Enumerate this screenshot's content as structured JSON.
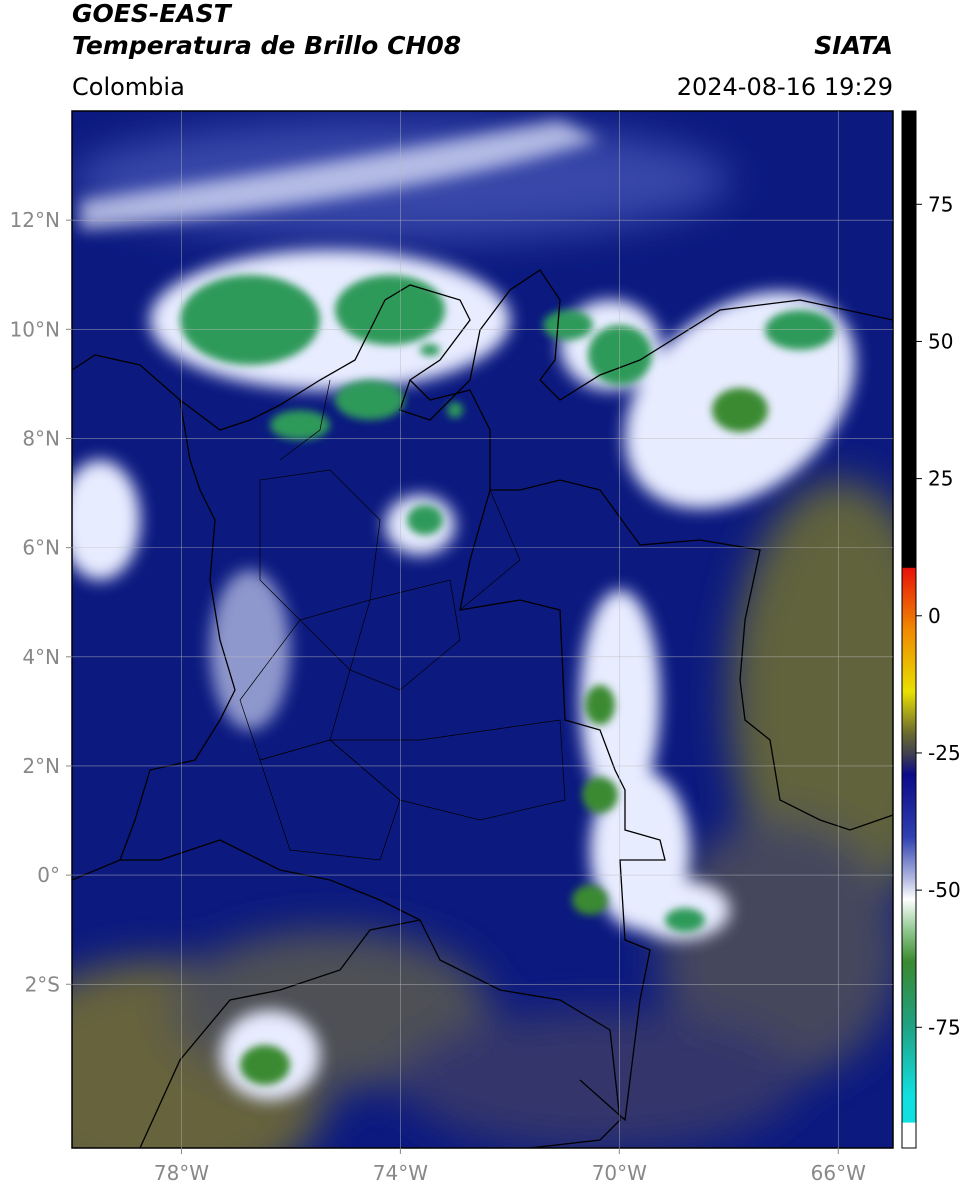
{
  "chart_data": {
    "type": "map",
    "title": "GOES-EAST",
    "subtitle": "Temperatura de Brillo CH08",
    "source": "SIATA",
    "region": "Colombia",
    "timestamp": "2024-08-16 19:29",
    "xlim": [
      -80,
      -65
    ],
    "xticks": [
      {
        "value": -78,
        "label": "78°W"
      },
      {
        "value": -74,
        "label": "74°W"
      },
      {
        "value": -70,
        "label": "70°W"
      },
      {
        "value": -66,
        "label": "66°W"
      }
    ],
    "ylim": [
      -5,
      14
    ],
    "yticks": [
      {
        "value": 12,
        "label": "12°N"
      },
      {
        "value": 10,
        "label": "10°N"
      },
      {
        "value": 8,
        "label": "8°N"
      },
      {
        "value": 6,
        "label": "6°N"
      },
      {
        "value": 4,
        "label": "4°N"
      },
      {
        "value": 2,
        "label": "2°N"
      },
      {
        "value": 0,
        "label": "0°"
      },
      {
        "value": -2,
        "label": "2°S"
      }
    ],
    "grid": true,
    "colorbar": {
      "lim": [
        -97,
        92
      ],
      "ticks": [
        75,
        50,
        25,
        0,
        -25,
        -50,
        -75
      ]
    }
  }
}
